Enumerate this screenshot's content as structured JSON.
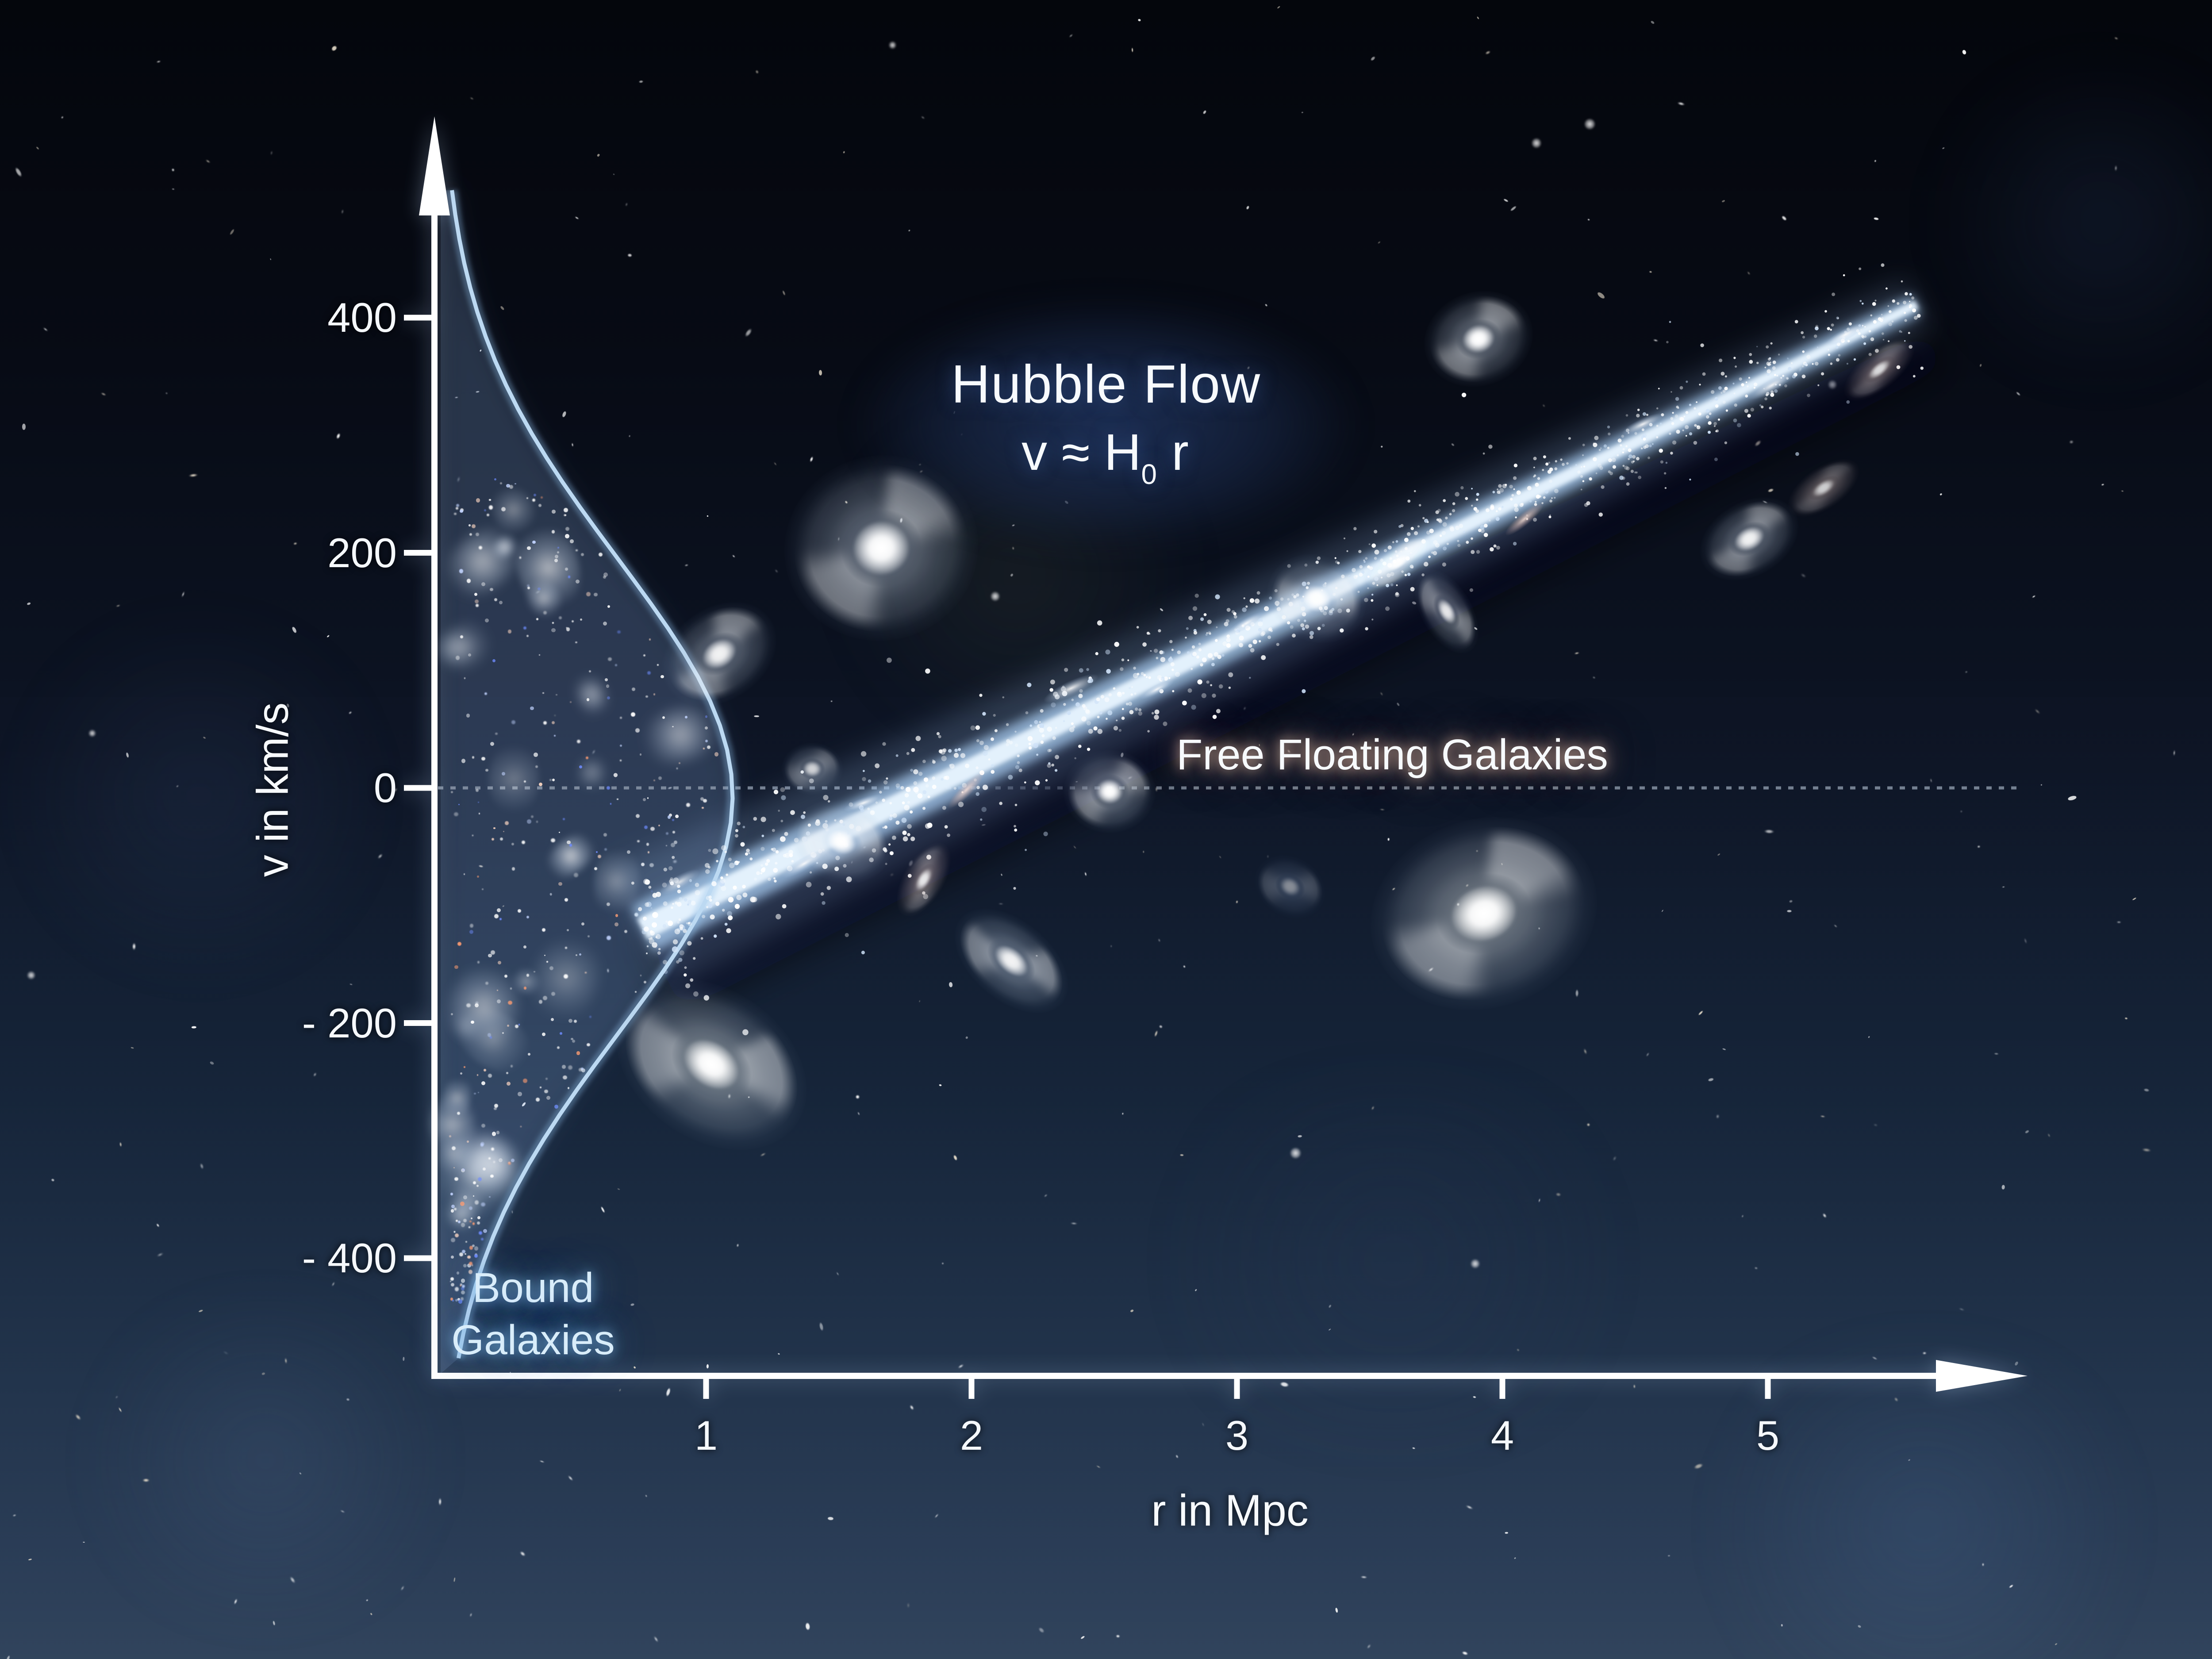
{
  "figure_title": "Hubble Flow",
  "formula": {
    "lead": "v",
    "approx": "≈",
    "hubble": "H",
    "sub": "0",
    "tail": "r"
  },
  "labels": {
    "free_floating": "Free Floating Galaxies",
    "bound_line1": "Bound",
    "bound_line2": "Galaxies",
    "y_axis": "v in km/s",
    "x_axis": "r in Mpc"
  },
  "colors": {
    "background_top": "#04060c",
    "background_bottom": "#33465f",
    "axis": "#ffffff",
    "tick_text": "#f5f8fc",
    "streak_core": "#e6f3ff",
    "streak_band": "#aacdf0",
    "envelope_stroke": "#bcd9f2",
    "envelope_fill_rgba": "rgba(140,180,225,0.16)",
    "zero_line": "#97a3b4",
    "bound_text": "#d9edfa",
    "title_glow": "#1e3158",
    "free_floating_glow": "#b08878"
  },
  "chart_data": {
    "type": "scatter",
    "title": "Hubble Flow",
    "subtitle": "v ≈ H0 r",
    "xlabel": "r in Mpc",
    "ylabel": "v in km/s",
    "xlim": [
      0,
      5.9
    ],
    "ylim": [
      -560,
      560
    ],
    "grid": false,
    "legend_position": "none",
    "x_ticks": [
      {
        "label": "1",
        "r": 1
      },
      {
        "label": "2",
        "r": 2
      },
      {
        "label": "3",
        "r": 3
      },
      {
        "label": "4",
        "r": 4
      },
      {
        "label": "5",
        "r": 5
      }
    ],
    "y_ticks": [
      {
        "label": "400",
        "v": 400
      },
      {
        "label": "200",
        "v": 200
      },
      {
        "label": "0",
        "v": 0
      },
      {
        "label": "- 200",
        "v": -200
      },
      {
        "label": "- 400",
        "v": -400
      }
    ],
    "zero_velocity_line_v": 0,
    "hubble_flow_line": {
      "r": [
        0.76,
        5.56
      ],
      "v": [
        -120,
        411
      ],
      "H0_slope_km_s_per_Mpc": 110
    },
    "bound_galaxies_envelope": {
      "description": "velocity-dispersion envelope of gravitationally bound cluster galaxies hugging the v axis",
      "peak_r": 1.1,
      "v_center": 0,
      "v_extent": [
        -500,
        500
      ]
    },
    "annotations": [
      {
        "text": "Hubble Flow",
        "r": 2.5,
        "v": 340
      },
      {
        "text": "v ≈ H0 r",
        "r": 2.5,
        "v": 283
      },
      {
        "text": "Free Floating Galaxies",
        "r": 3.58,
        "v": 28
      },
      {
        "text": "Bound Galaxies",
        "r": 0.35,
        "v": -443
      }
    ],
    "galaxies": [
      {
        "r": 1.66,
        "v": 204,
        "size": 440,
        "kind": "spiral",
        "angle": -15,
        "aspect": 0.95,
        "opacity": 1
      },
      {
        "r": 1.05,
        "v": 114,
        "size": 280,
        "kind": "spiral",
        "angle": -35,
        "aspect": 0.75,
        "opacity": 0.95
      },
      {
        "r": 1.51,
        "v": -46,
        "size": 230,
        "kind": "spiral",
        "angle": 20,
        "aspect": 0.8,
        "opacity": 1
      },
      {
        "r": 2.52,
        "v": -3,
        "size": 210,
        "kind": "spiral",
        "angle": 0,
        "aspect": 0.9,
        "opacity": 1
      },
      {
        "r": 2.15,
        "v": -147,
        "size": 300,
        "kind": "spiral",
        "angle": 40,
        "aspect": 0.6,
        "opacity": 0.95
      },
      {
        "r": 1.02,
        "v": -235,
        "size": 470,
        "kind": "spiral-dusty",
        "angle": 35,
        "aspect": 0.72,
        "opacity": 1
      },
      {
        "r": 3.93,
        "v": -107,
        "size": 520,
        "kind": "spiral-dusty",
        "angle": -18,
        "aspect": 0.82,
        "opacity": 1
      },
      {
        "r": 3.3,
        "v": 161,
        "size": 230,
        "kind": "spiral",
        "angle": 25,
        "aspect": 0.85,
        "opacity": 0.95
      },
      {
        "r": 3.79,
        "v": 150,
        "size": 210,
        "kind": "spiral",
        "angle": 60,
        "aspect": 0.55,
        "opacity": 0.9
      },
      {
        "r": 3.91,
        "v": 382,
        "size": 250,
        "kind": "spiral",
        "angle": -20,
        "aspect": 0.85,
        "opacity": 1
      },
      {
        "r": 1.82,
        "v": -78,
        "size": 190,
        "kind": "pink",
        "angle": -60,
        "aspect": 0.5,
        "opacity": 0.9
      },
      {
        "r": 4.93,
        "v": 212,
        "size": 240,
        "kind": "spiral",
        "angle": -30,
        "aspect": 0.7,
        "opacity": 0.95
      },
      {
        "r": 5.42,
        "v": 356,
        "size": 200,
        "kind": "pink",
        "angle": -40,
        "aspect": 0.45,
        "opacity": 0.85
      },
      {
        "r": 5.21,
        "v": 255,
        "size": 190,
        "kind": "pink",
        "angle": -35,
        "aspect": 0.5,
        "opacity": 0.8
      },
      {
        "r": 3.2,
        "v": -84,
        "size": 170,
        "kind": "blue-faint",
        "angle": 30,
        "aspect": 0.8,
        "opacity": 0.5
      },
      {
        "r": 1.4,
        "v": 16,
        "size": 140,
        "kind": "spiral",
        "angle": 0,
        "aspect": 0.85,
        "opacity": 0.8
      },
      {
        "r": 0.9,
        "v": -80,
        "size": 130,
        "kind": "wisp",
        "angle": -30,
        "aspect": 0.5,
        "opacity": 0.8
      }
    ],
    "streak_galaxies": [
      {
        "r": 1.35,
        "offset": 28,
        "size": 150,
        "kind": "wisp",
        "angle": -30
      },
      {
        "r": 1.62,
        "offset": -36,
        "size": 120,
        "kind": "wisp",
        "angle": -20
      },
      {
        "r": 1.95,
        "offset": 40,
        "size": 140,
        "kind": "pinkwisp",
        "angle": -45
      },
      {
        "r": 2.42,
        "offset": -62,
        "size": 170,
        "kind": "wisp",
        "angle": -25
      },
      {
        "r": 2.68,
        "offset": 25,
        "size": 110,
        "kind": "wisp",
        "angle": -28
      },
      {
        "r": 3.05,
        "offset": -20,
        "size": 120,
        "kind": "wisp",
        "angle": -30
      },
      {
        "r": 3.6,
        "offset": 8,
        "size": 190,
        "kind": "bright",
        "angle": -35
      },
      {
        "r": 4.05,
        "offset": 45,
        "size": 140,
        "kind": "pinkwisp",
        "angle": -40
      },
      {
        "r": 4.55,
        "offset": -30,
        "size": 130,
        "kind": "wisp",
        "angle": -25
      },
      {
        "r": 5.0,
        "offset": 20,
        "size": 150,
        "kind": "wisp",
        "angle": -30
      },
      {
        "r": 5.3,
        "offset": -10,
        "size": 130,
        "kind": "wisp",
        "angle": -28
      }
    ]
  }
}
